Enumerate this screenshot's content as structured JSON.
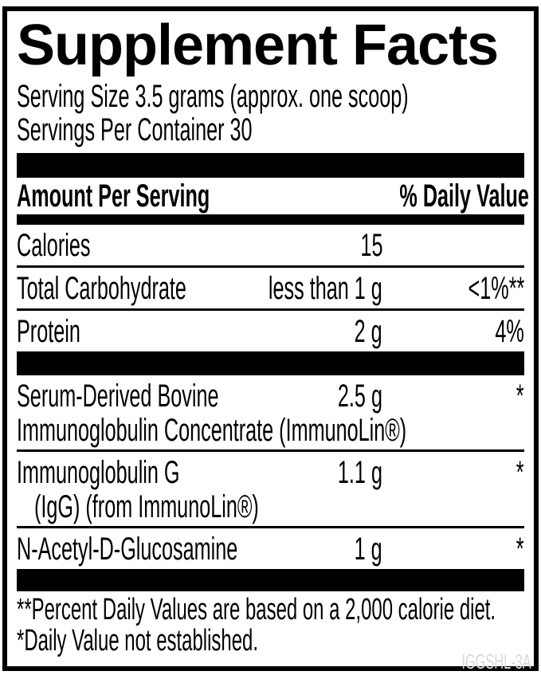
{
  "panel": {
    "title": "Supplement Facts",
    "serving_size": "Serving Size 3.5 grams (approx. one scoop)",
    "servings_per_container": "Servings Per Container 30",
    "header": {
      "amount_label": "Amount Per Serving",
      "dv_label": "% Daily Value"
    },
    "rows": [
      {
        "name": "Calories",
        "amount": "15",
        "dv": ""
      },
      {
        "name": "Total Carbohydrate",
        "amount": "less than 1 g",
        "dv": "<1%**"
      },
      {
        "name": "Protein",
        "amount": "2 g",
        "dv": "4%"
      },
      {
        "name": "Serum-Derived Bovine Immunoglobulin Concentrate (ImmunoLin®)",
        "name_line1": "Serum-Derived Bovine",
        "name_line2": "Immunoglobulin Concentrate (ImmunoLin®)",
        "amount": "2.5 g",
        "dv": "*"
      },
      {
        "name": "Immunoglobulin G (IgG) (from ImmunoLin®)",
        "name_line1": "Immunoglobulin G",
        "name_line2": "(IgG) (from ImmunoLin®)",
        "amount": "1.1 g",
        "dv": "*"
      },
      {
        "name": "N-Acetyl-D-Glucosamine",
        "amount": "1 g",
        "dv": "*"
      }
    ],
    "footnotes": [
      "**Percent Daily Values are based on a 2,000 calorie diet.",
      "*Daily Value not established."
    ]
  },
  "footer": {
    "code": "IGGSHL-3A"
  },
  "colors": {
    "ink": "#000000",
    "background": "#ffffff",
    "footer_code": "#d9d9d9"
  }
}
